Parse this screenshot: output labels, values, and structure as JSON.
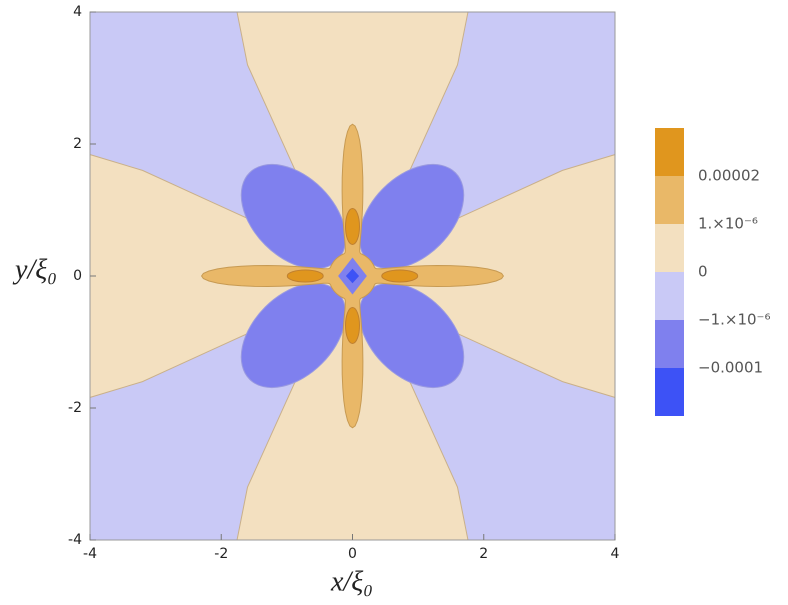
{
  "chart_data": {
    "type": "contour",
    "x_label": "x/ξ₀",
    "y_label": "y/ξ₀",
    "xlim": [
      -4,
      4
    ],
    "ylim": [
      -4,
      4
    ],
    "xticks": [
      -4,
      -2,
      0,
      2,
      4
    ],
    "yticks": [
      -4,
      -2,
      0,
      2,
      4
    ],
    "levels": [
      {
        "value": 2e-05,
        "label": "0.00002"
      },
      {
        "value": 1e-06,
        "label": "1.×10⁻⁶"
      },
      {
        "value": 0,
        "label": "0"
      },
      {
        "value": -1e-06,
        "label": "−1.×10⁻⁶"
      },
      {
        "value": -0.0001,
        "label": "−0.0001"
      }
    ],
    "colors": [
      "#e0961e",
      "#e9b868",
      "#f3e0c0",
      "#c9c9f6",
      "#7f80ee",
      "#3d52f6"
    ]
  }
}
